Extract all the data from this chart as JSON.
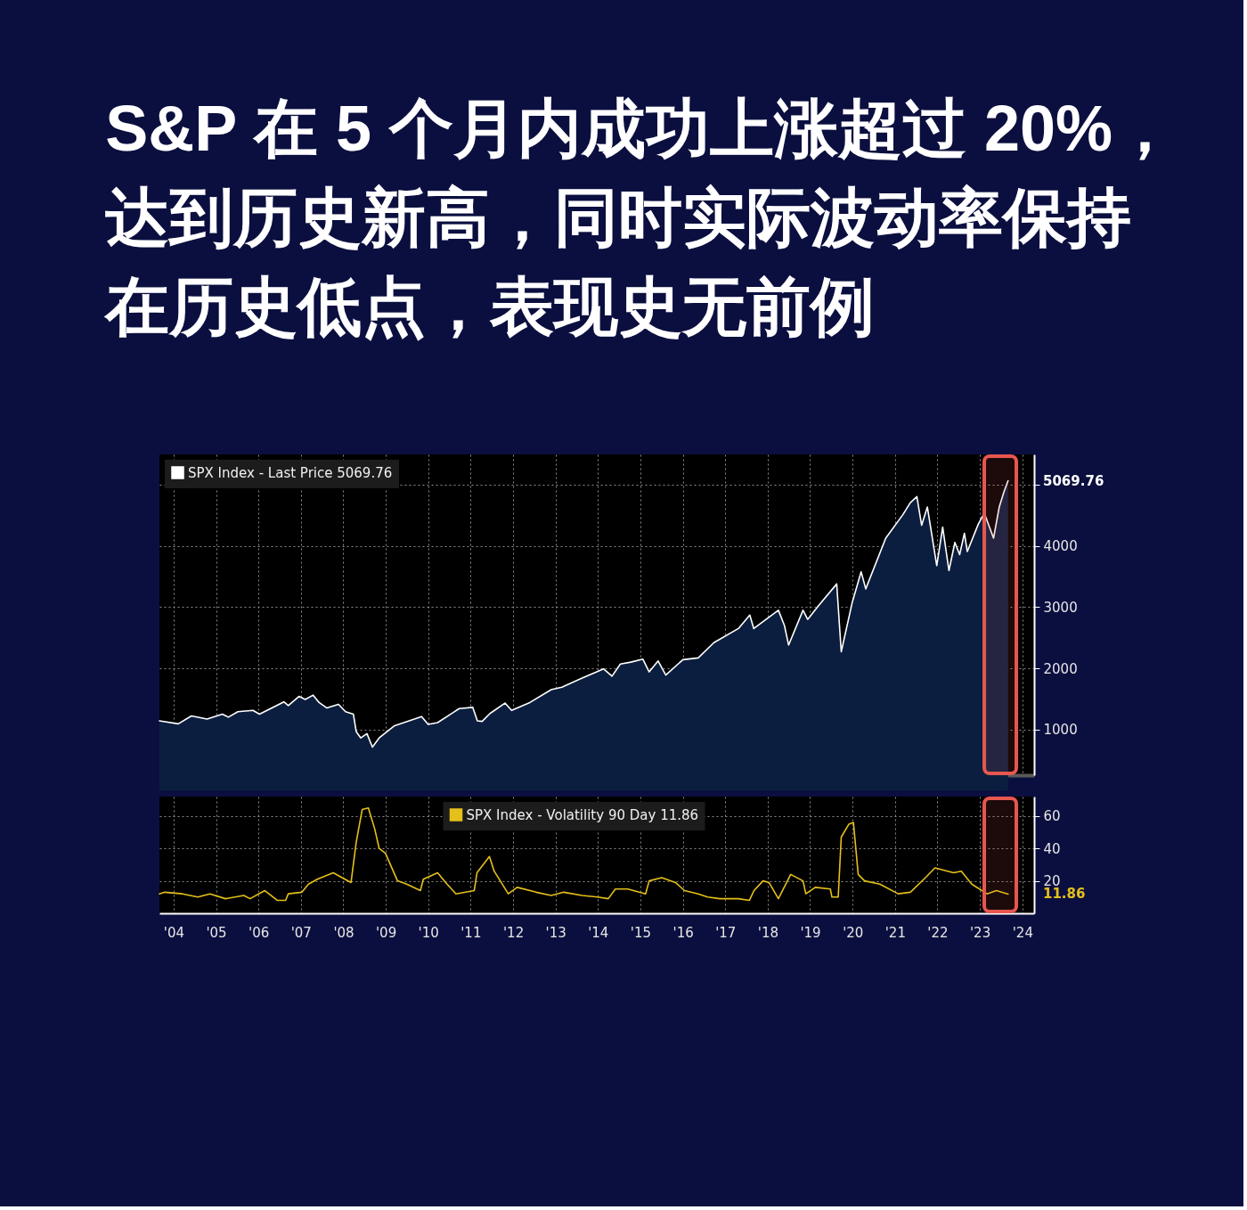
{
  "chart_data": [
    {
      "type": "area",
      "title": "S&P 在 5 个月内成功上涨超过 20%，达到历史新高，同时实际波动率保持在历史低点，表现史无前例",
      "x": [
        "2004-03-01",
        "2004-08-10",
        "2004-12-01",
        "2005-04-15",
        "2005-08-25",
        "2005-10-15",
        "2006-01-05",
        "2006-05-15",
        "2006-07-10",
        "2007-02-05",
        "2007-03-15",
        "2007-06-15",
        "2007-08-08",
        "2007-10-15",
        "2007-12-05",
        "2008-02-10",
        "2008-05-20",
        "2008-07-20",
        "2008-09-25",
        "2008-10-20",
        "2008-11-28",
        "2009-01-20",
        "2009-03-08",
        "2009-05-05",
        "2009-09-15",
        "2010-01-01",
        "2010-05-05",
        "2010-07-01",
        "2010-09-20",
        "2011-03-25",
        "2011-07-20",
        "2011-08-28",
        "2011-10-08",
        "2011-12-15",
        "2012-04-22",
        "2012-06-18",
        "2012-11-22",
        "2013-05-25",
        "2013-08-25",
        "2014-02-15",
        "2014-08-18",
        "2014-10-30",
        "2015-01-10",
        "2015-04-10",
        "2015-07-22",
        "2015-09-15",
        "2015-12-01",
        "2016-02-05",
        "2016-07-01",
        "2016-11-10",
        "2017-03-25",
        "2017-10-22",
        "2018-01-28",
        "2018-03-03",
        "2018-10-01",
        "2018-11-22",
        "2018-12-28",
        "2019-05-01",
        "2019-06-10",
        "2019-09-10",
        "2020-02-15",
        "2020-03-25",
        "2020-06-28",
        "2020-09-12",
        "2020-10-22",
        "2021-04-12",
        "2021-09-05",
        "2021-11-10",
        "2022-01-05",
        "2022-02-15",
        "2022-04-05",
        "2022-06-25",
        "2022-08-15",
        "2022-10-08",
        "2022-11-28",
        "2023-01-08",
        "2023-02-18",
        "2023-03-15",
        "2023-06-18",
        "2023-08-08",
        "2023-10-27",
        "2023-12-15",
        "2024-01-25",
        "2024-02-29"
      ],
      "series": [
        {
          "name": "SPX Index - Last Price 5069.76",
          "color": "#ffffff",
          "values": [
            1140,
            1090,
            1220,
            1170,
            1250,
            1200,
            1290,
            1310,
            1250,
            1450,
            1390,
            1540,
            1490,
            1560,
            1440,
            1350,
            1410,
            1290,
            1250,
            960,
            860,
            930,
            710,
            860,
            1060,
            1130,
            1210,
            1080,
            1110,
            1340,
            1360,
            1140,
            1130,
            1260,
            1430,
            1310,
            1440,
            1650,
            1690,
            1840,
            1990,
            1870,
            2070,
            2100,
            2150,
            1940,
            2120,
            1890,
            2140,
            2170,
            2420,
            2650,
            2870,
            2650,
            2950,
            2700,
            2380,
            2950,
            2800,
            3020,
            3380,
            2270,
            3080,
            3580,
            3300,
            4130,
            4510,
            4710,
            4810,
            4340,
            4640,
            3680,
            4310,
            3600,
            4060,
            3860,
            4210,
            3910,
            4360,
            4540,
            4130,
            4640,
            4890,
            5069.76
          ]
        }
      ],
      "xlim": [
        "2004-03-01",
        "2024-10-10"
      ],
      "ylim": [
        250,
        5500
      ],
      "xticks": [
        {
          "value": "2004-07-01",
          "label": null
        },
        {
          "value": "2005-07-01",
          "label": null
        },
        {
          "value": "2006-07-01",
          "label": null
        },
        {
          "value": "2007-07-01",
          "label": null
        },
        {
          "value": "2008-07-01",
          "label": null
        },
        {
          "value": "2009-07-01",
          "label": null
        },
        {
          "value": "2010-07-01",
          "label": null
        },
        {
          "value": "2011-07-01",
          "label": null
        },
        {
          "value": "2012-07-01",
          "label": null
        },
        {
          "value": "2013-07-01",
          "label": null
        },
        {
          "value": "2014-07-01",
          "label": null
        },
        {
          "value": "2015-07-01",
          "label": null
        },
        {
          "value": "2016-07-01",
          "label": null
        },
        {
          "value": "2017-07-01",
          "label": null
        },
        {
          "value": "2018-07-01",
          "label": null
        },
        {
          "value": "2019-07-01",
          "label": null
        },
        {
          "value": "2020-07-01",
          "label": null
        },
        {
          "value": "2021-07-01",
          "label": null
        },
        {
          "value": "2022-07-01",
          "label": null
        },
        {
          "value": "2023-07-01",
          "label": null
        },
        {
          "value": "2024-07-01",
          "label": null
        }
      ],
      "yticks": [
        1000,
        2000,
        3000,
        4000,
        {
          "value": 5000,
          "label": null
        }
      ],
      "tick_labels": "y",
      "grid": true,
      "legend": "top left",
      "bands": [
        {
          "axis": "x",
          "from": "2023-08-08",
          "to": "2024-05-10",
          "color": "#e8574f"
        }
      ],
      "annotations": [
        "5069.76"
      ]
    },
    {
      "type": "line",
      "x": [
        "2004-03-01",
        "2004-04-15",
        "2004-09-15",
        "2005-01-25",
        "2005-05-10",
        "2005-09-20",
        "2006-02-25",
        "2006-04-20",
        "2006-08-25",
        "2006-12-10",
        "2007-02-20",
        "2007-03-15",
        "2007-07-10",
        "2007-09-05",
        "2007-11-20",
        "2008-04-05",
        "2008-06-20",
        "2008-09-05",
        "2008-10-20",
        "2008-12-10",
        "2009-02-01",
        "2009-03-28",
        "2009-05-05",
        "2009-06-28",
        "2009-10-10",
        "2009-12-28",
        "2010-04-25",
        "2010-05-20",
        "2010-09-20",
        "2010-12-10",
        "2011-02-25",
        "2011-08-01",
        "2011-08-25",
        "2011-12-10",
        "2012-01-20",
        "2012-05-20",
        "2012-08-05",
        "2013-01-15",
        "2013-05-25",
        "2013-09-10",
        "2014-02-15",
        "2014-06-28",
        "2014-09-28",
        "2014-11-28",
        "2015-03-15",
        "2015-08-15",
        "2015-09-15",
        "2016-01-01",
        "2016-04-28",
        "2016-07-15",
        "2016-11-10",
        "2017-01-30",
        "2017-05-15",
        "2017-10-22",
        "2018-01-25",
        "2018-03-05",
        "2018-05-22",
        "2018-07-12",
        "2018-10-01",
        "2019-01-15",
        "2019-05-01",
        "2019-05-25",
        "2019-08-15",
        "2019-12-22",
        "2020-01-05",
        "2020-02-28",
        "2020-03-25",
        "2020-05-30",
        "2020-07-08",
        "2020-08-18",
        "2020-10-12",
        "2021-02-20",
        "2021-07-28",
        "2021-11-10",
        "2022-03-20",
        "2022-06-10",
        "2022-09-25",
        "2022-11-18",
        "2023-01-22",
        "2023-04-22",
        "2023-09-01",
        "2023-11-20",
        "2024-02-29"
      ],
      "series": [
        {
          "name": "SPX Index - Volatility 90 Day 11.86",
          "color": "#e5c01a",
          "values": [
            12,
            13,
            12,
            10,
            12,
            9,
            11,
            9,
            14,
            8,
            8,
            12,
            13,
            18,
            21,
            25,
            22,
            19,
            44,
            64,
            65,
            52,
            40,
            37,
            20,
            18,
            14,
            21,
            25,
            18,
            12,
            14,
            25,
            35,
            26,
            12,
            16,
            13,
            11,
            13,
            11,
            10,
            9,
            15,
            15,
            12,
            20,
            22,
            19,
            14,
            12,
            10,
            9,
            9,
            8,
            14,
            20,
            19,
            9,
            24,
            20,
            12,
            16,
            15,
            10,
            10,
            47,
            55,
            56,
            24,
            20,
            18,
            12,
            13,
            22,
            28,
            26,
            25,
            26,
            18,
            12,
            14,
            11.86
          ]
        }
      ],
      "xlim": [
        "2004-03-01",
        "2024-10-10"
      ],
      "ylim": [
        0,
        72
      ],
      "xticks": [
        {
          "value": "2004-07-01",
          "label": "'04"
        },
        {
          "value": "2005-07-01",
          "label": "'05"
        },
        {
          "value": "2006-07-01",
          "label": "'06"
        },
        {
          "value": "2007-07-01",
          "label": "'07"
        },
        {
          "value": "2008-07-01",
          "label": "'08"
        },
        {
          "value": "2009-07-01",
          "label": "'09"
        },
        {
          "value": "2010-07-01",
          "label": "'10"
        },
        {
          "value": "2011-07-01",
          "label": "'11"
        },
        {
          "value": "2012-07-01",
          "label": "'12"
        },
        {
          "value": "2013-07-01",
          "label": "'13"
        },
        {
          "value": "2014-07-01",
          "label": "'14"
        },
        {
          "value": "2015-07-01",
          "label": "'15"
        },
        {
          "value": "2016-07-01",
          "label": "'16"
        },
        {
          "value": "2017-07-01",
          "label": "'17"
        },
        {
          "value": "2018-07-01",
          "label": "'18"
        },
        {
          "value": "2019-07-01",
          "label": "'19"
        },
        {
          "value": "2020-07-01",
          "label": "'20"
        },
        {
          "value": "2021-07-01",
          "label": "'21"
        },
        {
          "value": "2022-07-01",
          "label": "'22"
        },
        {
          "value": "2023-07-01",
          "label": "'23"
        },
        {
          "value": "2024-07-01",
          "label": "'24"
        }
      ],
      "yticks": [
        20,
        40,
        60
      ],
      "grid": true,
      "legend": "top",
      "bands": [
        {
          "axis": "x",
          "from": "2023-08-08",
          "to": "2024-05-10",
          "color": "#e8574f"
        }
      ],
      "annotations": [
        "11.86"
      ]
    }
  ]
}
